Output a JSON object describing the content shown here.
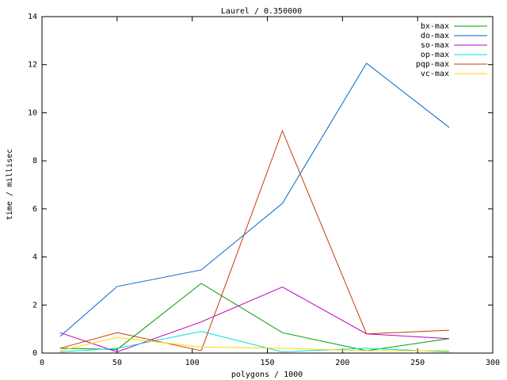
{
  "chart_data": {
    "type": "line",
    "title": "Laurel / 0.350000",
    "x_label": "polygons / 1000",
    "y_label": "time / millisec",
    "x": [
      12,
      50,
      106,
      160,
      216,
      271
    ],
    "xlim": [
      0,
      300
    ],
    "xticks": [
      0,
      50,
      100,
      150,
      200,
      250,
      300
    ],
    "ylim": [
      0,
      14
    ],
    "yticks": [
      0,
      2,
      4,
      6,
      8,
      10,
      12,
      14
    ],
    "legend": "top-right",
    "series": [
      {
        "name": "bx-max",
        "color": "#00a000",
        "values": [
          0.2,
          0.15,
          2.9,
          0.85,
          0.1,
          0.6
        ]
      },
      {
        "name": "do-max",
        "color": "#0066cc",
        "values": [
          0.69,
          2.77,
          3.46,
          6.23,
          12.06,
          9.39
        ]
      },
      {
        "name": "so-max",
        "color": "#c000c0",
        "values": [
          0.85,
          0.05,
          1.3,
          2.75,
          0.8,
          0.6
        ]
      },
      {
        "name": "op-max",
        "color": "#00dddd",
        "values": [
          0.05,
          0.2,
          0.9,
          0.05,
          0.2,
          0.05
        ]
      },
      {
        "name": "pqp-max",
        "color": "#c04000",
        "values": [
          0.2,
          0.85,
          0.1,
          9.25,
          0.8,
          0.95
        ]
      },
      {
        "name": "vc-max",
        "color": "#ffd700",
        "values": [
          0.1,
          0.65,
          0.25,
          0.2,
          0.1,
          0.1
        ]
      }
    ]
  }
}
